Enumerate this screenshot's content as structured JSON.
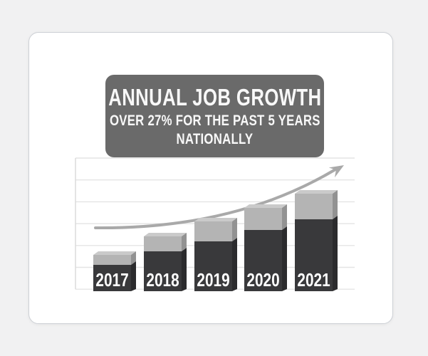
{
  "page": {
    "background": "#f1f1f2",
    "card_background": "#ffffff",
    "card_border": "#cdd0d5"
  },
  "title_box": {
    "line1": "ANNUAL JOB GROWTH",
    "line2": "OVER 27% FOR THE PAST 5 YEARS",
    "line3": "NATIONALLY",
    "background": "#6a6a6a",
    "text_color": "#f8f8f8"
  },
  "chart_data": {
    "type": "bar",
    "subtype": "stacked-3d-infographic",
    "title": "Annual Job Growth over 27% for the past 5 years nationally",
    "categories": [
      "2017",
      "2018",
      "2019",
      "2020",
      "2021"
    ],
    "series": [
      {
        "name": "dark-base-segment",
        "values": [
          37,
          56,
          70,
          86,
          101
        ],
        "color": "#39393b",
        "side_color": "#2b2b2d"
      },
      {
        "name": "light-top-segment",
        "values": [
          14,
          21,
          28,
          31,
          36
        ],
        "color": "#b4b4b4",
        "side_color": "#929292",
        "top_color": "#cacaca"
      }
    ],
    "total_heights": [
      51,
      77,
      98,
      117,
      137
    ],
    "units": "relative height (no numeric axis labels shown)",
    "xlabel": "",
    "ylabel": "",
    "label_color": "#ffffff",
    "grid": {
      "horizontal_line_count": 7,
      "line_color": "#e4e4e4",
      "axis_line_color": "#d9d9d9",
      "visible": true
    },
    "legend": "none",
    "annotations": [
      "upward curved trend arrow"
    ],
    "arrow_color": "#a9a9a9"
  }
}
